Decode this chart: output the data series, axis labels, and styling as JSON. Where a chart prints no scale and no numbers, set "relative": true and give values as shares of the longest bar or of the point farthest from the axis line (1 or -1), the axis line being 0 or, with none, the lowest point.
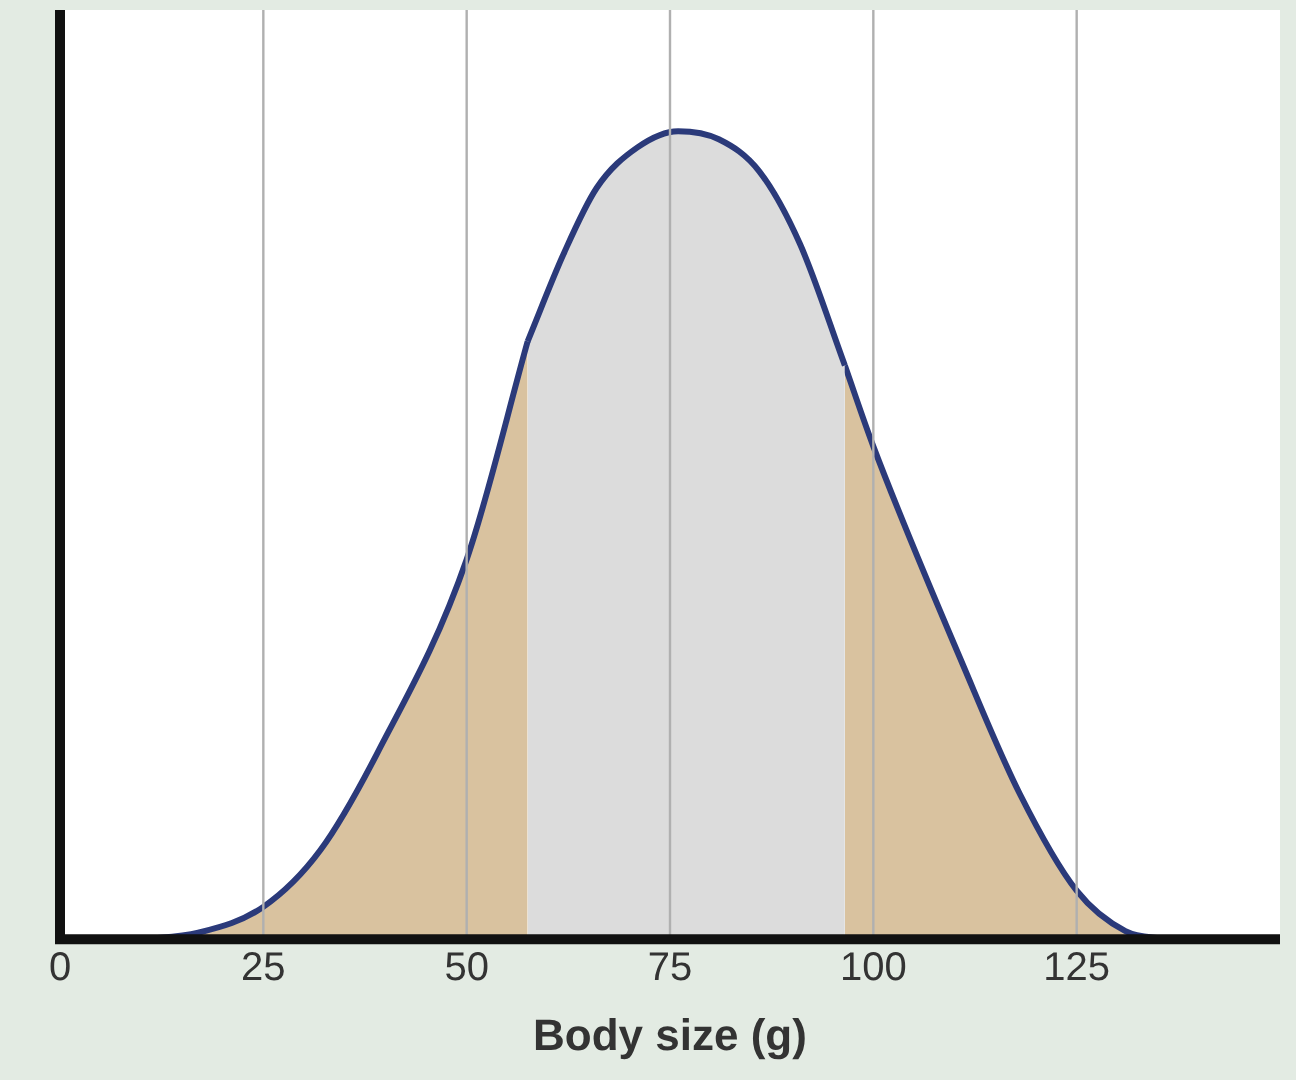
{
  "chart_data": {
    "type": "area",
    "relative": true,
    "xlabel": "Body size (g)",
    "xlim": [
      0,
      150
    ],
    "xticks": [
      0,
      25,
      50,
      75,
      100,
      125
    ],
    "grid": "x",
    "legend": false,
    "marker": "none",
    "series": [
      {
        "color": "#d9c29f",
        "x": [
          10,
          17,
          25,
          32,
          39,
          50,
          57.5
        ],
        "values": [
          0,
          0.008,
          0.04,
          0.11,
          0.23,
          0.47,
          0.74
        ]
      },
      {
        "color": "#dcdcdc",
        "x": [
          57.5,
          62,
          66,
          71,
          76,
          81,
          86,
          91,
          96.5
        ],
        "values": [
          0.74,
          0.85,
          0.93,
          0.98,
          1,
          0.99,
          0.95,
          0.86,
          0.71
        ]
      },
      {
        "color": "#d9c29f",
        "x": [
          96.5,
          100,
          111,
          118,
          125,
          131,
          136
        ],
        "values": [
          0.71,
          0.61,
          0.34,
          0.18,
          0.06,
          0.01,
          0
        ]
      }
    ]
  }
}
